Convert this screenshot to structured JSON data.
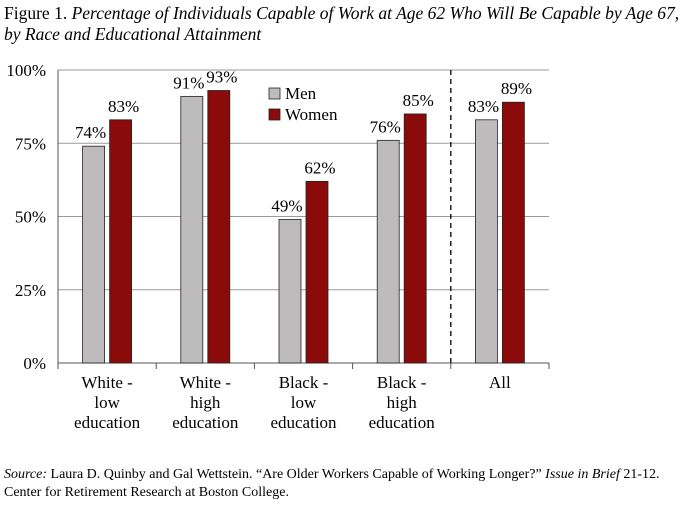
{
  "figure": {
    "label": "Figure 1.",
    "title": "Percentage of Individuals Capable of Work at Age 62 Who Will Be Capable by Age 67, by Race and Educational Attainment"
  },
  "chart_data": {
    "type": "bar",
    "categories": [
      [
        "White -",
        "low",
        "education"
      ],
      [
        "White -",
        "high",
        "education"
      ],
      [
        "Black -",
        "low",
        "education"
      ],
      [
        "Black -",
        "high",
        "education"
      ],
      [
        "All"
      ]
    ],
    "series": [
      {
        "name": "Men",
        "color": "#bdbbbb",
        "values": [
          74,
          91,
          49,
          76,
          83
        ],
        "labels": [
          "74%",
          "91%",
          "49%",
          "76%",
          "83%"
        ]
      },
      {
        "name": "Women",
        "color": "#8b0a0a",
        "values": [
          83,
          93,
          62,
          85,
          89
        ],
        "labels": [
          "83%",
          "93%",
          "62%",
          "85%",
          "89%"
        ]
      }
    ],
    "ylim": [
      0,
      100
    ],
    "yticks": [
      0,
      25,
      50,
      75,
      100
    ],
    "ytick_labels": [
      "0%",
      "25%",
      "50%",
      "75%",
      "100%"
    ],
    "grid": true,
    "legend": "top-center",
    "separator": "dashed line between Black - high education and All"
  },
  "source": {
    "label": "Source:",
    "authors": "Laura D. Quinby and Gal Wettstein. “Are Older Workers Capable of Working Longer?”",
    "publication": "Issue in Brief",
    "rest": "21-12. Center for Retirement Research at Boston College."
  }
}
